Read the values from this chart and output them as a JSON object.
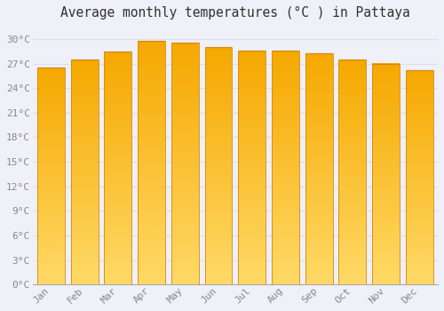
{
  "title": "Average monthly temperatures (°C ) in Pattaya",
  "months": [
    "Jan",
    "Feb",
    "Mar",
    "Apr",
    "May",
    "Jun",
    "Jul",
    "Aug",
    "Sep",
    "Oct",
    "Nov",
    "Dec"
  ],
  "values": [
    26.5,
    27.5,
    28.5,
    29.8,
    29.5,
    29.0,
    28.6,
    28.6,
    28.2,
    27.5,
    27.0,
    26.2
  ],
  "bar_color_top": "#F5A800",
  "bar_color_bottom": "#FFD966",
  "bar_edge_color": "#D4890A",
  "background_color": "#F0F0F8",
  "plot_bg_color": "#F0F0F8",
  "grid_color": "#DDDDEE",
  "yticks": [
    0,
    3,
    6,
    9,
    12,
    15,
    18,
    21,
    24,
    27,
    30
  ],
  "ytick_labels": [
    "0°C",
    "3°C",
    "6°C",
    "9°C",
    "12°C",
    "15°C",
    "18°C",
    "21°C",
    "24°C",
    "27°C",
    "30°C"
  ],
  "ylim": [
    0,
    31.5
  ],
  "title_fontsize": 10.5,
  "tick_fontsize": 8,
  "tick_color": "#888888",
  "font_family": "monospace",
  "bar_width": 0.82
}
